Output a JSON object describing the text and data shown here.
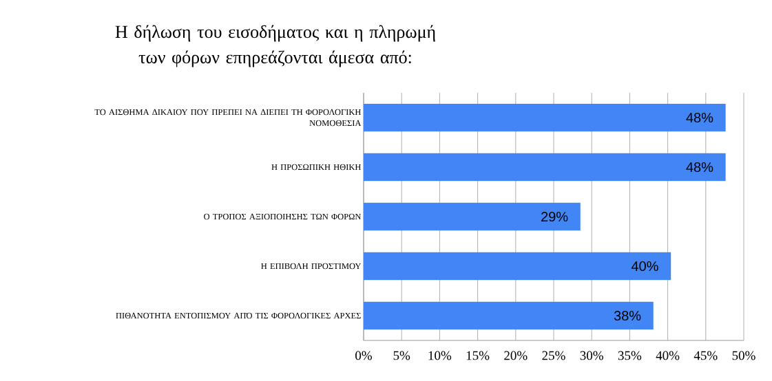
{
  "chart_data": {
    "type": "bar",
    "orientation": "horizontal",
    "title": "Η δήλωση του εισοδήματος και η πληρωμή των φόρων επηρεάζονται άμεσα από:",
    "categories": [
      "ΤΟ ΑΙΣΘΗΜΑ ΔΙΚΑΙΟΥ ΠΟΥ ΠΡΕΠΕΙ ΝΑ ΔΙΕΠΕΙ ΤΗ ΦΟΡΟΛΟΓΙΚΗ ΝΟΜΟΘΕΣΙΑ",
      "Η ΠΡΟΣΩΠΙΚΗ ΗΘΙΚΗ",
      "Ο ΤΡΟΠΟΣ ΑΞΙΟΠΟΙΗΣΗΣ ΤΩΝ ΦΟΡΩΝ",
      "Η ΕΠΙΒΟΛΗ ΠΡΟΣΤΙΜΟΥ",
      "ΠΙΘΑΝΟΤΗΤΑ ΕΝΤΟΠΙΣΜΟΥ ΑΠΌ ΤΙΣ ΦΟΡΟΛΟΓΙΚΕΣ ΑΡΧΕΣ"
    ],
    "values": [
      47.6,
      47.6,
      28.5,
      40.4,
      38.1
    ],
    "value_labels": [
      "48%",
      "48%",
      "29%",
      "40%",
      "38%"
    ],
    "color": "#4285f4",
    "xlim": [
      0,
      50
    ],
    "xticks": [
      {
        "value": 0,
        "label": "0%"
      },
      {
        "value": 5,
        "label": "5%"
      },
      {
        "value": 10,
        "label": "10%"
      },
      {
        "value": 15,
        "label": "15%"
      },
      {
        "value": 20,
        "label": "20%"
      },
      {
        "value": 25,
        "label": "25%"
      },
      {
        "value": 30,
        "label": "30%"
      },
      {
        "value": 35,
        "label": "35%"
      },
      {
        "value": 40,
        "label": "40%"
      },
      {
        "value": 45,
        "label": "45%"
      },
      {
        "value": 50,
        "label": "50%"
      }
    ],
    "grid": "x"
  }
}
